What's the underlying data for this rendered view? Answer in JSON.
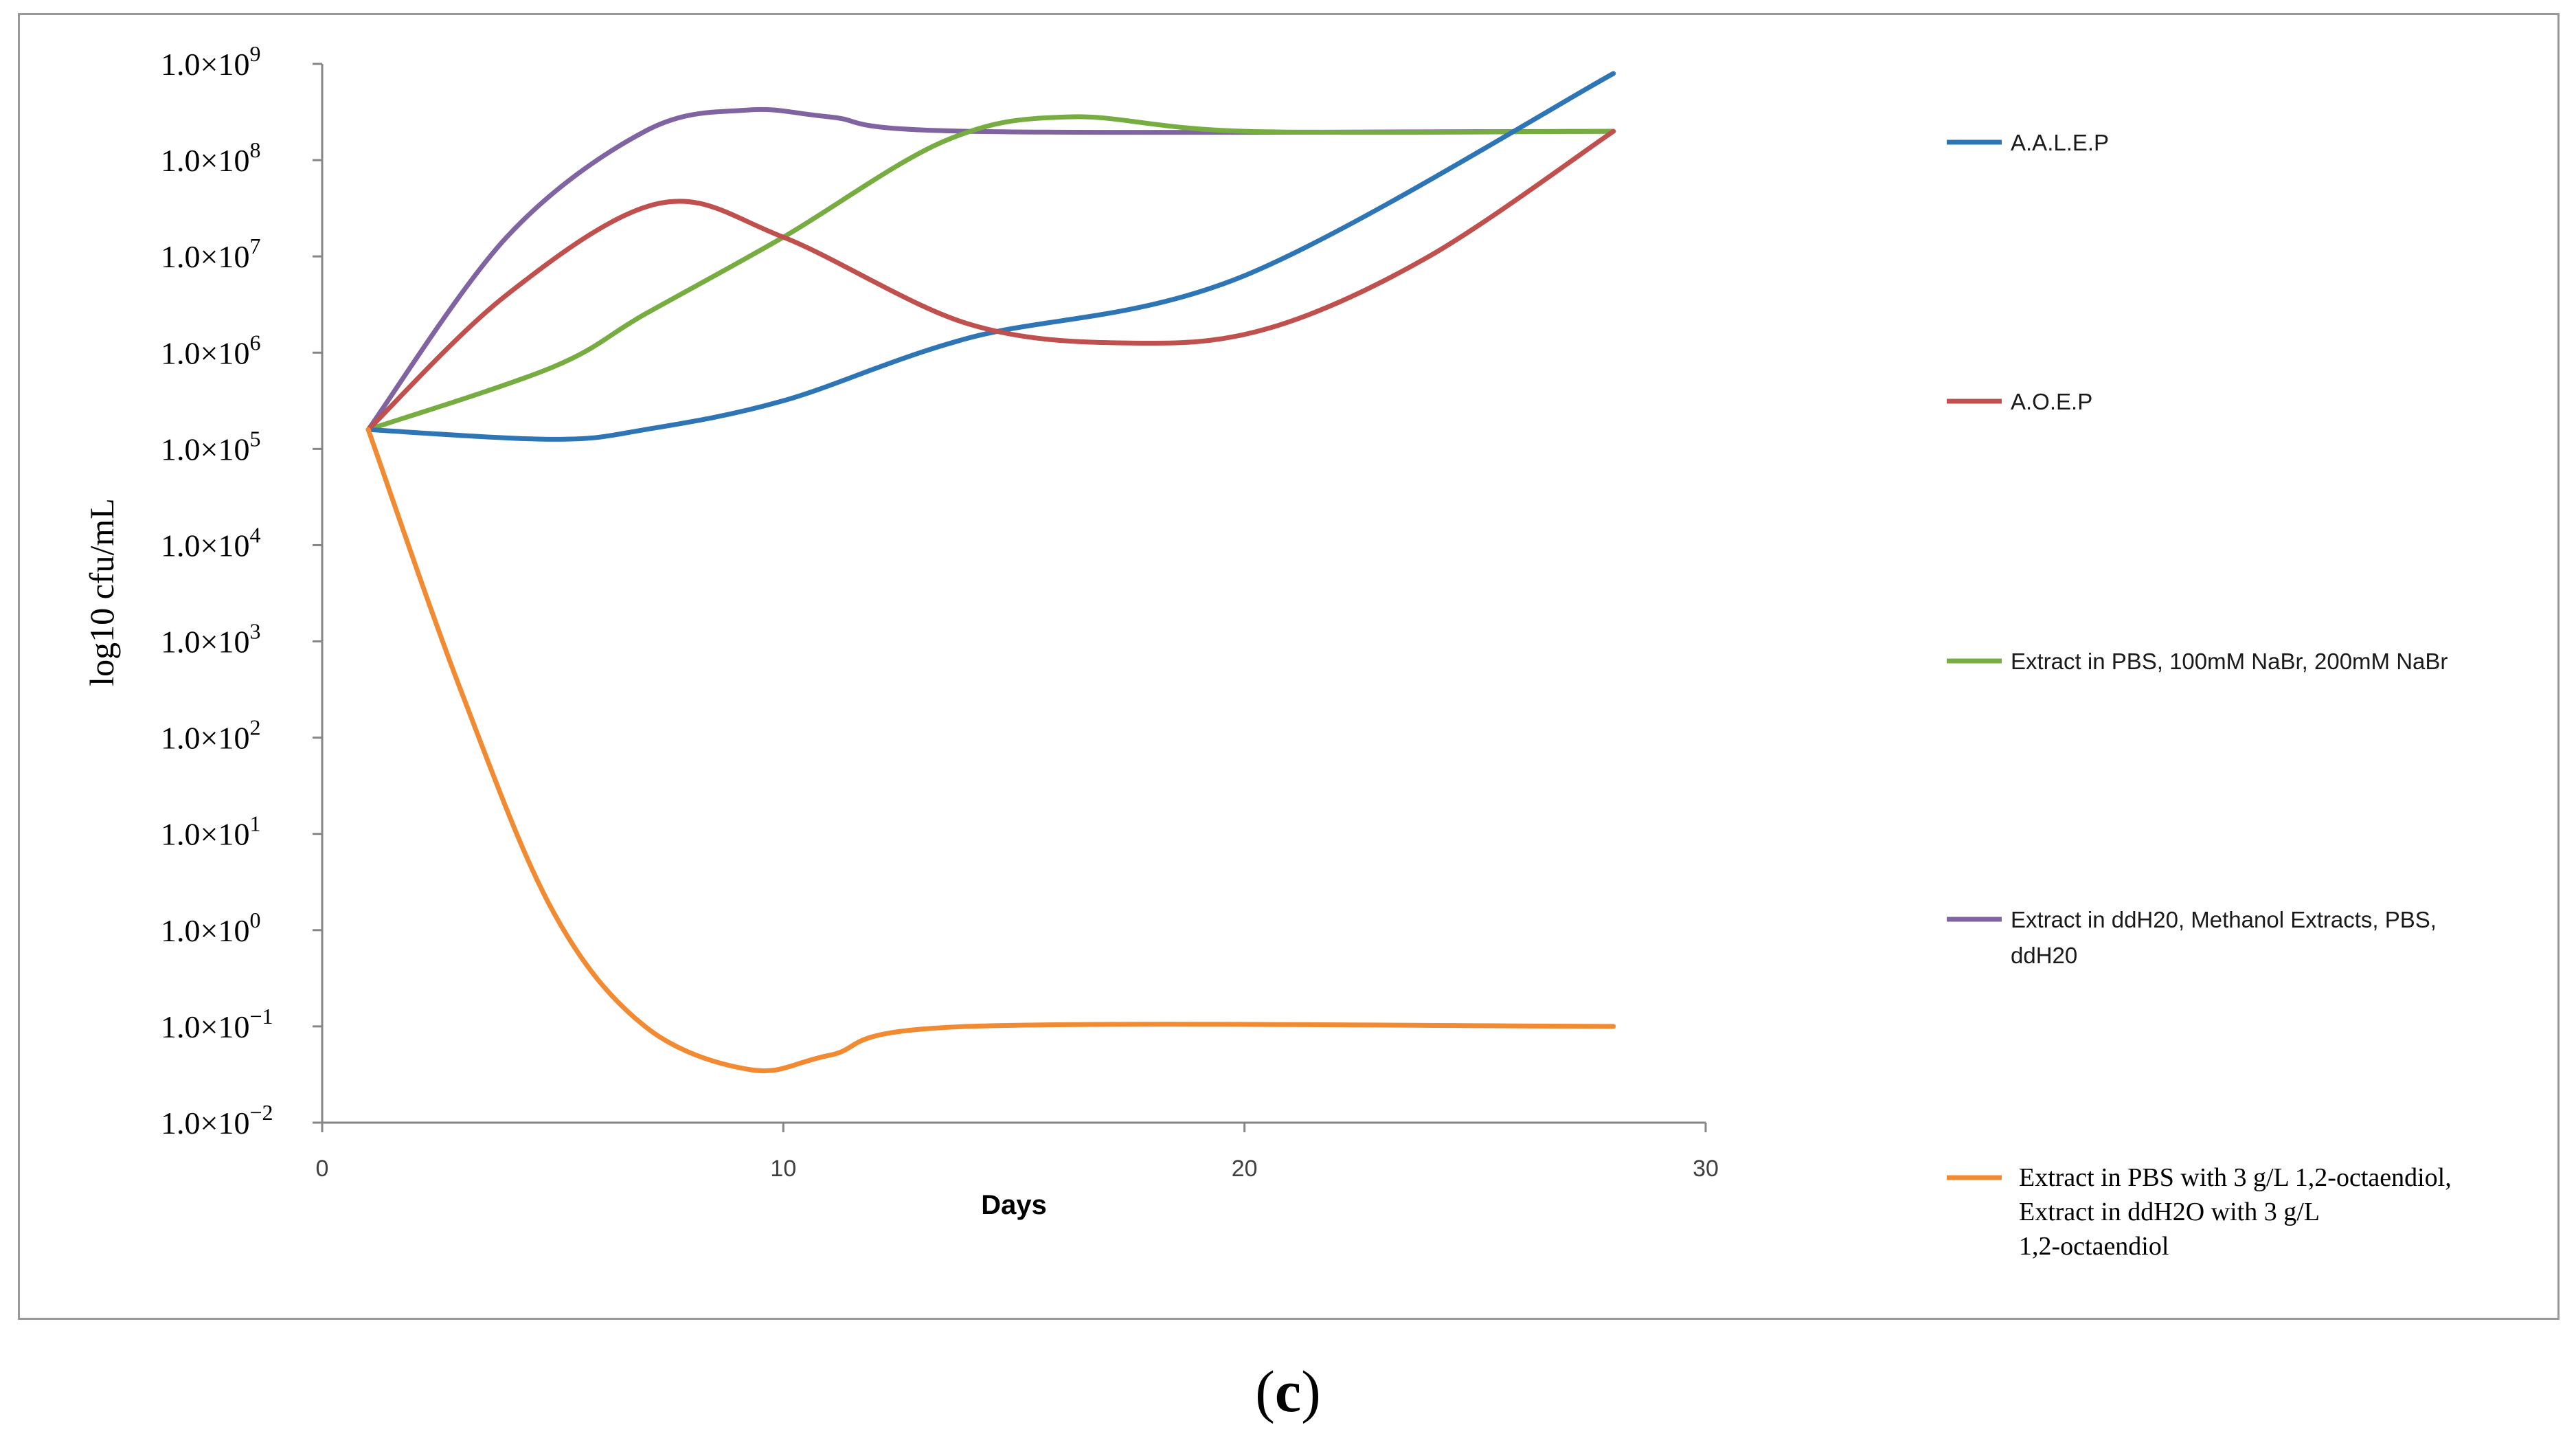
{
  "panel": {
    "open": "(",
    "letter": "c",
    "close": ")"
  },
  "chart_data": {
    "type": "line",
    "title": "",
    "xlabel": "Days",
    "ylabel": "log10 cfu/mL",
    "xlim": [
      0,
      30
    ],
    "ylim_log10": [
      -2,
      9
    ],
    "x_ticks": [
      {
        "value": 0,
        "label": "0"
      },
      {
        "value": 10,
        "label": "10"
      },
      {
        "value": 20,
        "label": "20"
      },
      {
        "value": 30,
        "label": "30"
      }
    ],
    "y_ticks": [
      {
        "value": 9,
        "label": "1.0×10",
        "exp": "9"
      },
      {
        "value": 8,
        "label": "1.0×10",
        "exp": "8"
      },
      {
        "value": 7,
        "label": "1.0×10",
        "exp": "7"
      },
      {
        "value": 6,
        "label": "1.0×10",
        "exp": "6"
      },
      {
        "value": 5,
        "label": "1.0×10",
        "exp": "5"
      },
      {
        "value": 4,
        "label": "1.0×10",
        "exp": "4"
      },
      {
        "value": 3,
        "label": "1.0×10",
        "exp": "3"
      },
      {
        "value": 2,
        "label": "1.0×10",
        "exp": "2"
      },
      {
        "value": 1,
        "label": "1.0×10",
        "exp": "1"
      },
      {
        "value": 0,
        "label": "1.0×10",
        "exp": "0"
      },
      {
        "value": -1,
        "label": "1.0×10",
        "exp": "−1"
      },
      {
        "value": -2,
        "label": "1.0×10",
        "exp": "−2"
      }
    ],
    "series": [
      {
        "name": "A.A.L.E.P",
        "legend": [
          "A.A.L.E.P"
        ],
        "legend_font": "sans",
        "color": "#2E75B6",
        "points": [
          [
            1,
            5.2
          ],
          [
            5,
            5.1
          ],
          [
            7,
            5.2
          ],
          [
            10,
            5.5
          ],
          [
            14,
            6.15
          ],
          [
            20,
            6.8
          ],
          [
            28,
            8.9
          ]
        ]
      },
      {
        "name": "A.O.E.P",
        "legend": [
          "A.O.E.P"
        ],
        "legend_font": "sans",
        "color": "#C0504D",
        "points": [
          [
            1,
            5.2
          ],
          [
            4,
            6.6
          ],
          [
            7.3,
            7.55
          ],
          [
            10,
            7.2
          ],
          [
            14,
            6.3
          ],
          [
            17.5,
            6.1
          ],
          [
            20.5,
            6.25
          ],
          [
            24,
            7.0
          ],
          [
            28,
            8.3
          ]
        ]
      },
      {
        "name": "Extract in PBS, 100mM NaBr, 200mM NaBr",
        "legend": [
          "Extract in PBS, 100mM NaBr, 200mM NaBr"
        ],
        "legend_font": "sans",
        "color": "#77AC41",
        "points": [
          [
            1,
            5.2
          ],
          [
            5,
            5.85
          ],
          [
            7,
            6.4
          ],
          [
            10,
            7.2
          ],
          [
            13.5,
            8.2
          ],
          [
            16.2,
            8.45
          ],
          [
            20,
            8.3
          ],
          [
            28,
            8.3
          ]
        ]
      },
      {
        "name": "Extract in ddH20, Methanol Extracts, PBS, ddH20",
        "legend": [
          "Extract in ddH20, Methanol Extracts, PBS,",
          "ddH20"
        ],
        "legend_font": "sans",
        "color": "#8064A2",
        "points": [
          [
            1,
            5.2
          ],
          [
            4,
            7.2
          ],
          [
            7,
            8.3
          ],
          [
            9.2,
            8.52
          ],
          [
            11,
            8.45
          ],
          [
            14,
            8.3
          ],
          [
            28,
            8.3
          ]
        ]
      },
      {
        "name": "Extract in PBS with 3 g/L 1,2-octaendiol, Extract in ddH2O with 3 g/L 1,2-octaendiol",
        "legend": [
          "Extract in PBS with 3 g/L 1,2-octaendiol,",
          "Extract in ddH2O with 3 g/L",
          "1,2-octaendiol"
        ],
        "legend_font": "serif",
        "color": "#F28A31",
        "points": [
          [
            1,
            5.2
          ],
          [
            3,
            2.5
          ],
          [
            5,
            0.2
          ],
          [
            7,
            -1.0
          ],
          [
            9.3,
            -1.45
          ],
          [
            11,
            -1.3
          ],
          [
            14,
            -1.0
          ],
          [
            28,
            -1.0
          ]
        ]
      }
    ]
  }
}
